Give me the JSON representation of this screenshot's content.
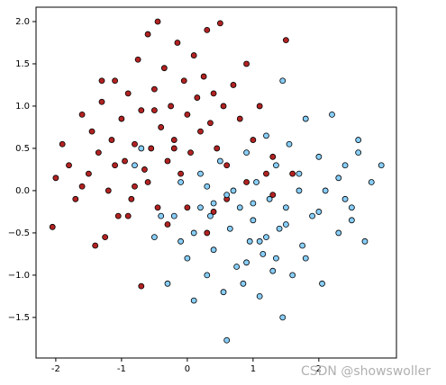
{
  "chart_data": {
    "type": "scatter",
    "xlim": [
      -2.3,
      3.18
    ],
    "ylim": [
      -1.98,
      2.17
    ],
    "xticks": [
      -2,
      -1,
      0,
      1,
      2
    ],
    "yticks": [
      {
        "value": -1.5,
        "label": "−1.5"
      },
      {
        "value": -1,
        "label": "−1.0"
      },
      {
        "value": -0.5,
        "label": "−0.5"
      },
      {
        "value": 0,
        "label": "0.0"
      },
      0.5,
      {
        "value": 1,
        "label": "1.0"
      },
      1.5,
      {
        "value": 2,
        "label": "2.0"
      }
    ],
    "grid": false,
    "watermark": "CSDN @showswoller",
    "series": [
      {
        "color": "#b22222",
        "x": [
          -2.05,
          -2.0,
          -1.9,
          -1.8,
          -1.7,
          -1.6,
          -1.5,
          -1.45,
          -1.4,
          -1.35,
          -1.3,
          -1.2,
          -1.15,
          -1.1,
          -1.05,
          -1.0,
          -0.95,
          -0.9,
          -0.85,
          -0.8,
          -0.75,
          -0.7,
          -0.7,
          -0.65,
          -0.6,
          -0.55,
          -0.5,
          -0.45,
          -0.45,
          -0.4,
          -0.35,
          -0.3,
          -0.25,
          -0.2,
          -0.15,
          -0.1,
          -0.05,
          0.0,
          0.05,
          0.1,
          0.15,
          0.2,
          0.25,
          0.3,
          0.35,
          0.4,
          0.45,
          0.5,
          0.55,
          0.6,
          0.7,
          0.8,
          0.9,
          1.0,
          1.1,
          1.2,
          1.3,
          1.5,
          -1.25,
          -0.9,
          -0.6,
          -0.3,
          0.0,
          0.3,
          -1.6,
          -1.1,
          -0.8,
          0.6,
          0.9,
          1.3,
          1.6,
          -0.2,
          0.4,
          -1.3,
          -0.5
        ],
        "values": [
          -0.43,
          0.15,
          0.55,
          0.3,
          -0.1,
          0.9,
          0.2,
          0.7,
          -0.65,
          0.45,
          1.05,
          0.0,
          0.6,
          1.3,
          -0.3,
          0.85,
          0.35,
          1.15,
          -0.1,
          0.55,
          1.55,
          -1.13,
          0.95,
          0.25,
          1.85,
          0.5,
          1.2,
          2.0,
          -0.2,
          0.75,
          1.45,
          0.35,
          1.0,
          0.6,
          1.75,
          0.2,
          1.3,
          0.9,
          0.45,
          1.6,
          1.1,
          0.7,
          1.35,
          1.9,
          0.8,
          1.15,
          0.5,
          1.98,
          1.0,
          0.3,
          1.25,
          0.85,
          1.5,
          0.6,
          1.0,
          0.2,
          0.4,
          1.78,
          -0.55,
          -0.3,
          0.1,
          -0.4,
          -0.2,
          -0.5,
          0.05,
          0.3,
          0.05,
          -0.1,
          0.1,
          -0.05,
          0.2,
          0.5,
          -0.25,
          1.3,
          0.95
        ]
      },
      {
        "color": "#87cefa",
        "x": [
          -0.7,
          -0.5,
          -0.3,
          -0.2,
          -0.1,
          0.0,
          0.1,
          0.1,
          0.2,
          0.3,
          0.35,
          0.4,
          0.5,
          0.55,
          0.6,
          0.65,
          0.7,
          0.75,
          0.8,
          0.85,
          0.9,
          0.95,
          1.0,
          1.05,
          1.1,
          1.15,
          1.2,
          1.25,
          1.3,
          1.35,
          1.4,
          1.45,
          1.45,
          1.5,
          1.55,
          1.6,
          1.7,
          1.75,
          1.8,
          1.9,
          2.0,
          2.05,
          2.1,
          2.2,
          2.3,
          2.4,
          2.5,
          2.6,
          2.7,
          2.8,
          2.95,
          0.6,
          1.2,
          1.8,
          2.3,
          0.2,
          0.9,
          1.5,
          2.0,
          2.5,
          -0.4,
          0.3,
          1.0,
          1.7,
          2.4,
          1.1,
          0.4,
          -0.8,
          -0.1,
          2.6,
          1.35
        ],
        "values": [
          0.5,
          -0.55,
          -1.1,
          -0.3,
          0.1,
          -0.8,
          -1.3,
          -0.5,
          0.2,
          -1.0,
          -0.3,
          -0.7,
          0.35,
          -1.2,
          -1.77,
          -0.45,
          0.0,
          -0.9,
          -0.2,
          -1.1,
          0.45,
          -0.6,
          -0.35,
          0.1,
          -1.25,
          -0.75,
          0.65,
          -0.1,
          -0.95,
          0.3,
          -0.45,
          1.3,
          -1.5,
          -0.2,
          0.55,
          -1.0,
          0.2,
          -0.65,
          0.85,
          -0.3,
          0.4,
          -1.1,
          0.0,
          0.9,
          -0.5,
          0.3,
          -0.2,
          0.6,
          -0.6,
          0.1,
          0.3,
          -0.05,
          -0.55,
          -0.8,
          0.15,
          -0.2,
          -0.85,
          -0.4,
          -0.25,
          -0.35,
          -0.3,
          0.05,
          -0.15,
          0.0,
          -0.1,
          -0.6,
          -0.15,
          0.3,
          -0.6,
          0.45,
          -0.8
        ]
      }
    ]
  }
}
